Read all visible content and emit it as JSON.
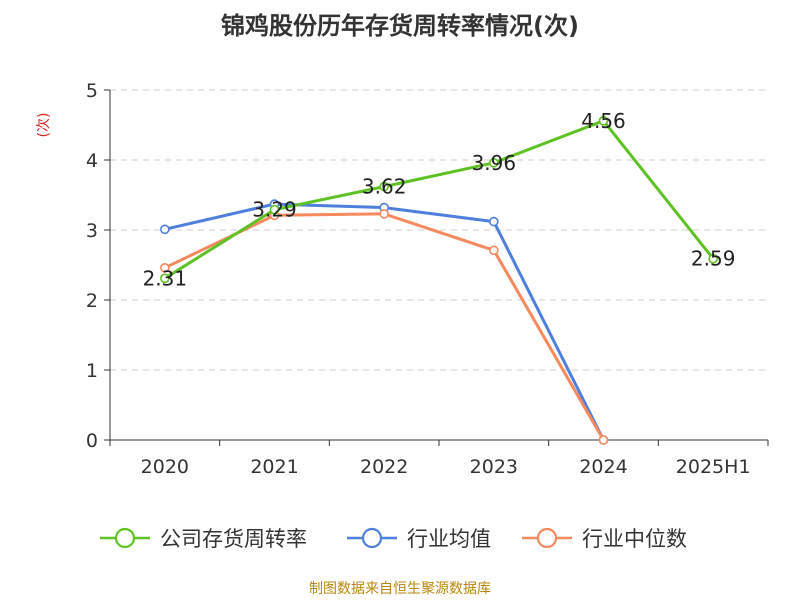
{
  "chart_data": {
    "type": "line",
    "title": "锦鸡股份历年存货周转率情况(次)",
    "ylabel": "(次)",
    "xlabel": "",
    "categories": [
      "2020",
      "2021",
      "2022",
      "2023",
      "2024",
      "2025H1"
    ],
    "ylim": [
      0,
      5
    ],
    "yticks": [
      0,
      1,
      2,
      3,
      4,
      5
    ],
    "grid": true,
    "legend_position": "bottom",
    "series": [
      {
        "name": "公司存货周转率",
        "color": "#5ec224",
        "values": [
          2.31,
          3.29,
          3.62,
          3.96,
          4.56,
          2.59
        ],
        "show_labels": true
      },
      {
        "name": "行业均值",
        "color": "#4e7fdd",
        "values": [
          3.01,
          3.37,
          3.32,
          3.12,
          0.0,
          null
        ],
        "show_labels": false
      },
      {
        "name": "行业中位数",
        "color": "#f6895e",
        "values": [
          2.46,
          3.21,
          3.23,
          2.71,
          0.0,
          null
        ],
        "show_labels": false
      }
    ]
  },
  "source_note": "制图数据来自恒生聚源数据库"
}
